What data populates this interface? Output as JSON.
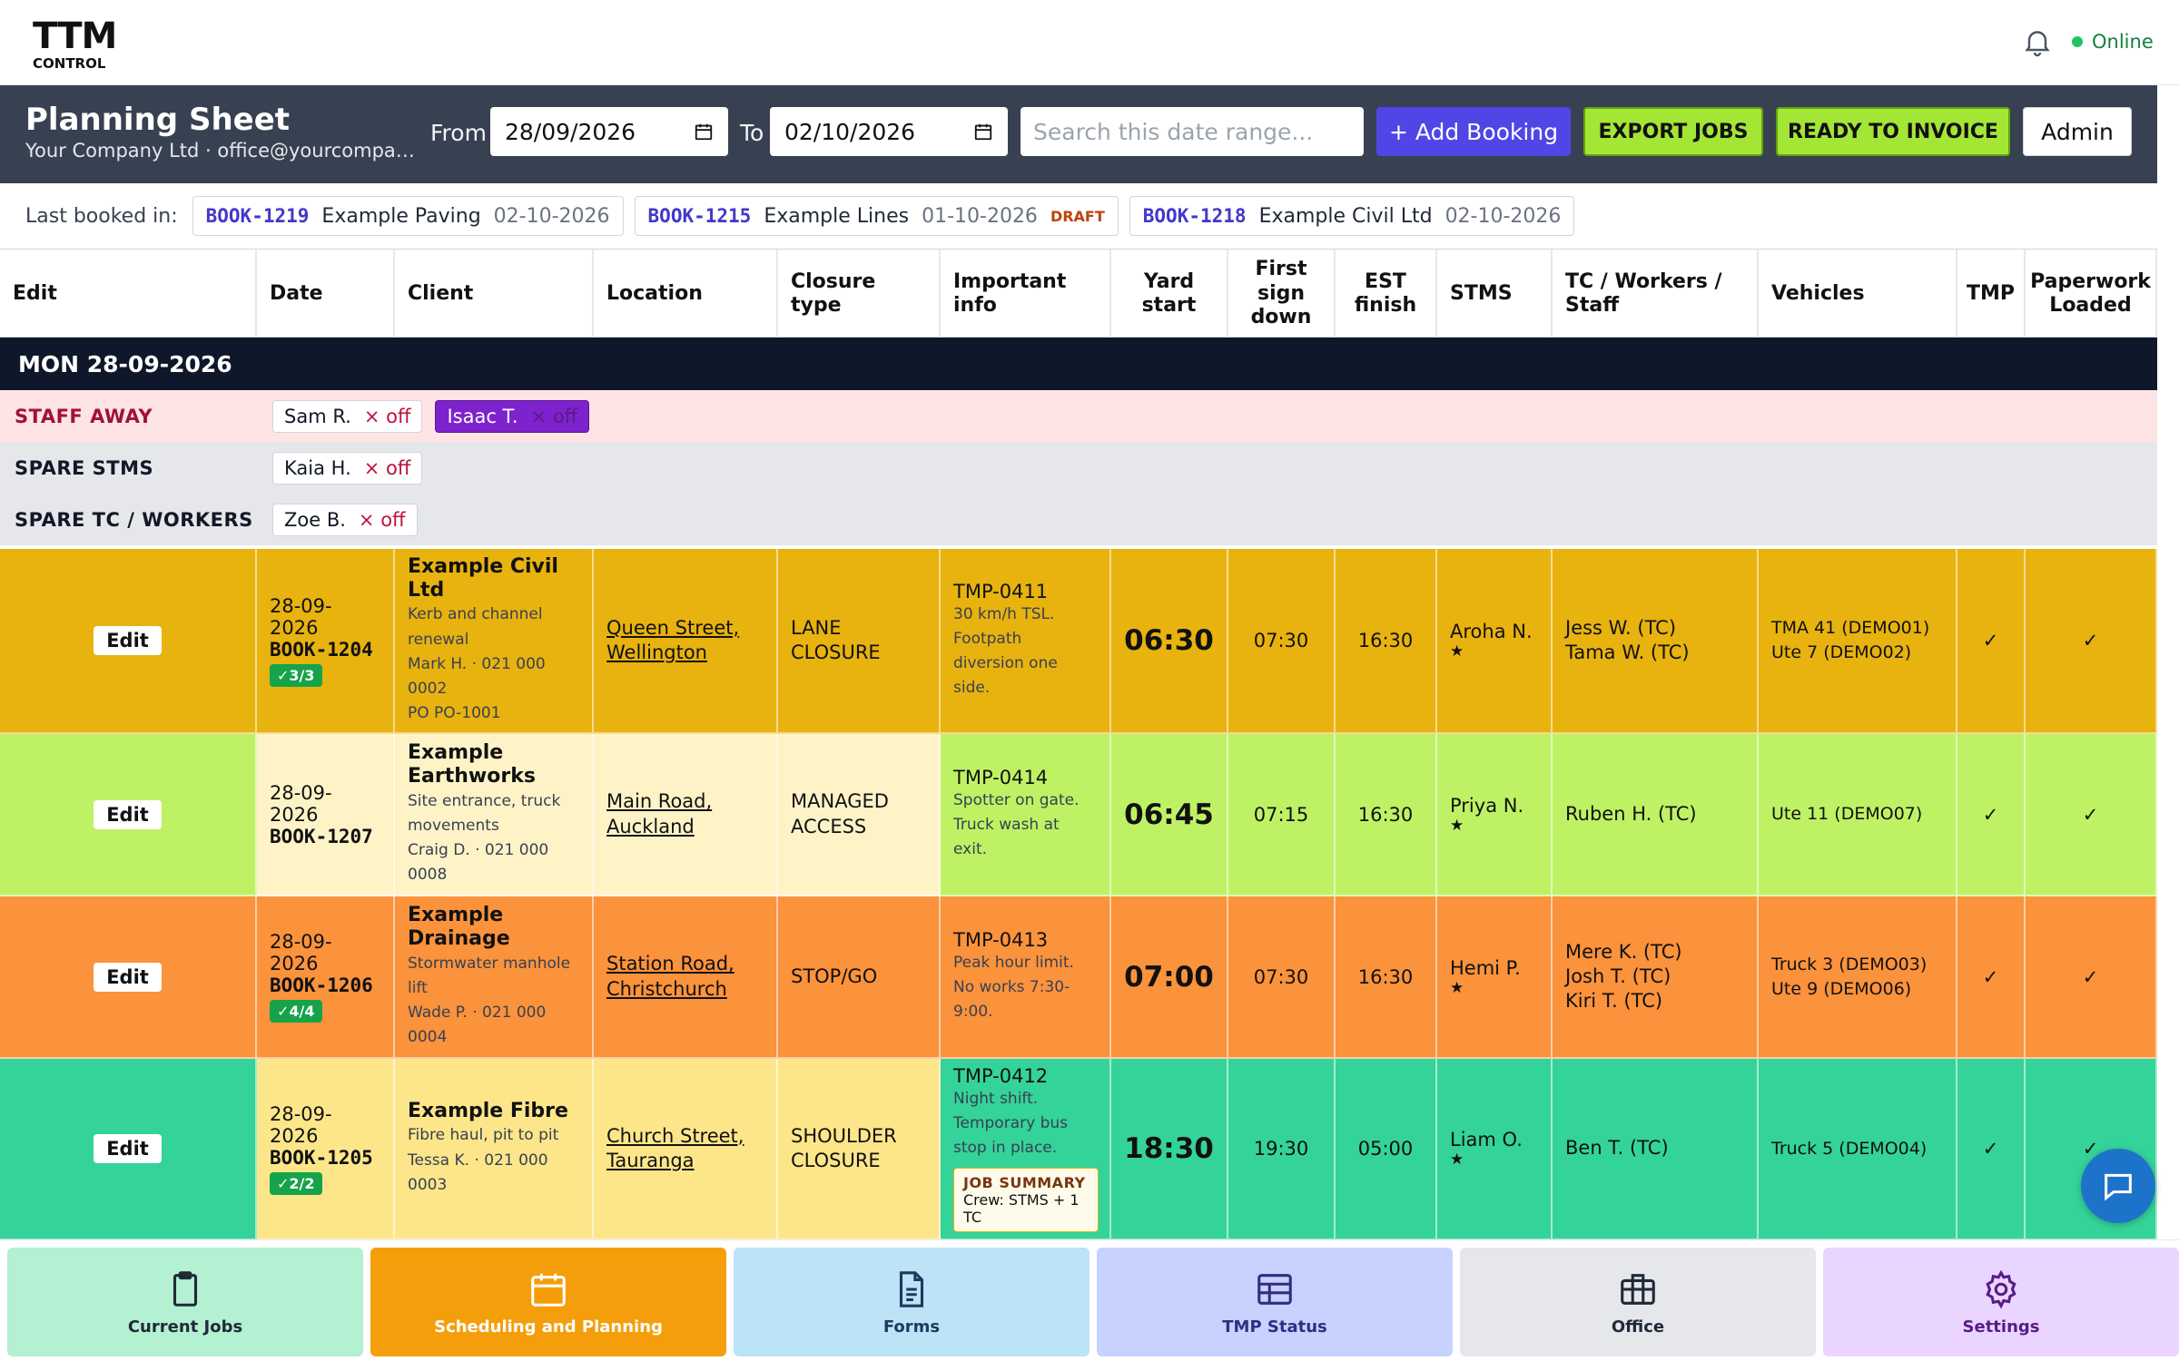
{
  "app": {
    "logo_top": "TTM",
    "logo_bottom": "CONTROL",
    "status": "Online"
  },
  "header": {
    "title": "Planning Sheet",
    "subtitle": "Your Company Ltd · office@yourcompan...",
    "from_label": "From",
    "from_value": "28/09/2026",
    "to_label": "To",
    "to_value": "02/10/2026",
    "search_placeholder": "Search this date range...",
    "add_booking": "+ Add Booking",
    "export_jobs": "EXPORT JOBS",
    "ready_to_invoice": "READY TO INVOICE",
    "admin": "Admin"
  },
  "last_booked": {
    "label": "Last booked in:",
    "items": [
      {
        "code": "BOOK-1219",
        "client": "Example Paving",
        "date": "02-10-2026",
        "draft": ""
      },
      {
        "code": "BOOK-1215",
        "client": "Example Lines",
        "date": "01-10-2026",
        "draft": "DRAFT"
      },
      {
        "code": "BOOK-1218",
        "client": "Example Civil Ltd",
        "date": "02-10-2026",
        "draft": ""
      }
    ]
  },
  "columns": {
    "edit": "Edit",
    "date": "Date",
    "client": "Client",
    "location": "Location",
    "closure": "Closure type",
    "info": "Important info",
    "yard": "Yard start",
    "first": "First sign down",
    "est": "EST finish",
    "stms": "STMS",
    "tc": "TC / Workers / Staff",
    "vehicles": "Vehicles",
    "tmp": "TMP",
    "paperwork": "Paperwork Loaded"
  },
  "day": {
    "label": "MON 28-09-2026",
    "staff_away_label": "STAFF AWAY",
    "staff_away": [
      {
        "name": "Sam R.",
        "off": "× off",
        "highlight": false
      },
      {
        "name": "Isaac T.",
        "off": "× off",
        "highlight": true
      }
    ],
    "spare_stms_label": "SPARE STMS",
    "spare_stms": [
      {
        "name": "Kaia H.",
        "off": "× off"
      }
    ],
    "spare_tc_label": "SPARE TC / WORKERS",
    "spare_tc": [
      {
        "name": "Zoe B.",
        "off": "× off"
      }
    ]
  },
  "jobs": [
    {
      "edit": "Edit",
      "date": "28-09-2026",
      "book": "BOOK-1204",
      "badge": "✓3/3",
      "client": "Example Civil Ltd",
      "desc": "Kerb and channel renewal",
      "contact": "Mark H. · 021 000 0002",
      "po": "PO PO-1001",
      "location": "Queen Street, Wellington",
      "closure": "LANE CLOSURE",
      "tmp_code": "TMP-0411",
      "info": "30 km/h TSL. Footpath diversion one side.",
      "yard": "06:30",
      "first": "07:30",
      "est": "16:30",
      "stms": "Aroha N.",
      "star": "★",
      "tc": [
        "Jess W. (TC)",
        "Tama W. (TC)"
      ],
      "vehicles": [
        "TMA 41 (DEMO01)",
        "Ute 7 (DEMO02)"
      ],
      "tmp": "✓",
      "paperwork": "✓",
      "color_main": "#e8b20f",
      "color_light": "#e8b20f"
    },
    {
      "edit": "Edit",
      "date": "28-09-2026",
      "book": "BOOK-1207",
      "badge": "",
      "client": "Example Earthworks",
      "desc": "Site entrance, truck movements",
      "contact": "Craig D. · 021 000 0008",
      "po": "",
      "location": "Main Road, Auckland",
      "closure": "MANAGED ACCESS",
      "tmp_code": "TMP-0414",
      "info": "Spotter on gate. Truck wash at exit.",
      "yard": "06:45",
      "first": "07:15",
      "est": "16:30",
      "stms": "Priya N.",
      "star": "★",
      "tc": [
        "Ruben H. (TC)"
      ],
      "vehicles": [
        "Ute 11 (DEMO07)"
      ],
      "tmp": "✓",
      "paperwork": "✓",
      "color_main": "#bef264",
      "color_light": "#fef3c7"
    },
    {
      "edit": "Edit",
      "date": "28-09-2026",
      "book": "BOOK-1206",
      "badge": "✓4/4",
      "client": "Example Drainage",
      "desc": "Stormwater manhole lift",
      "contact": "Wade P. · 021 000 0004",
      "po": "",
      "location": "Station Road, Christchurch",
      "closure": "STOP/GO",
      "tmp_code": "TMP-0413",
      "info": "Peak hour limit. No works 7:30-9:00.",
      "yard": "07:00",
      "first": "07:30",
      "est": "16:30",
      "stms": "Hemi P.",
      "star": "★",
      "tc": [
        "Mere K. (TC)",
        "Josh T. (TC)",
        "Kiri T. (TC)"
      ],
      "vehicles": [
        "Truck 3 (DEMO03)",
        "Ute 9 (DEMO06)"
      ],
      "tmp": "✓",
      "paperwork": "✓",
      "color_main": "#fb923c",
      "color_light": "#fb923c"
    },
    {
      "edit": "Edit",
      "date": "28-09-2026",
      "book": "BOOK-1205",
      "badge": "✓2/2",
      "client": "Example Fibre",
      "desc": "Fibre haul, pit to pit",
      "contact": "Tessa K. · 021 000 0003",
      "po": "",
      "location": "Church Street, Tauranga",
      "closure": "SHOULDER CLOSURE",
      "tmp_code": "TMP-0412",
      "info": "Night shift. Temporary bus stop in place.",
      "job_summary_title": "JOB SUMMARY",
      "job_summary": "Crew: STMS + 1 TC",
      "yard": "18:30",
      "first": "19:30",
      "est": "05:00",
      "stms": "Liam O.",
      "star": "★",
      "tc": [
        "Ben T. (TC)"
      ],
      "vehicles": [
        "Truck 5 (DEMO04)"
      ],
      "tmp": "✓",
      "paperwork": "✓",
      "color_main": "#34d399",
      "color_light": "#fde68a"
    }
  ],
  "nav": [
    {
      "label": "Current Jobs",
      "icon": "clipboard-icon",
      "bg": "#b4f0d2"
    },
    {
      "label": "Scheduling and Planning",
      "icon": "calendar-icon",
      "bg": "#f59e0b"
    },
    {
      "label": "Forms",
      "icon": "document-icon",
      "bg": "#bde3f7"
    },
    {
      "label": "TMP Status",
      "icon": "table-icon",
      "bg": "#c7d2fe"
    },
    {
      "label": "Office",
      "icon": "briefcase-icon",
      "bg": "#e5e7eb"
    },
    {
      "label": "Settings",
      "icon": "gear-icon",
      "bg": "#e9d5ff"
    }
  ]
}
